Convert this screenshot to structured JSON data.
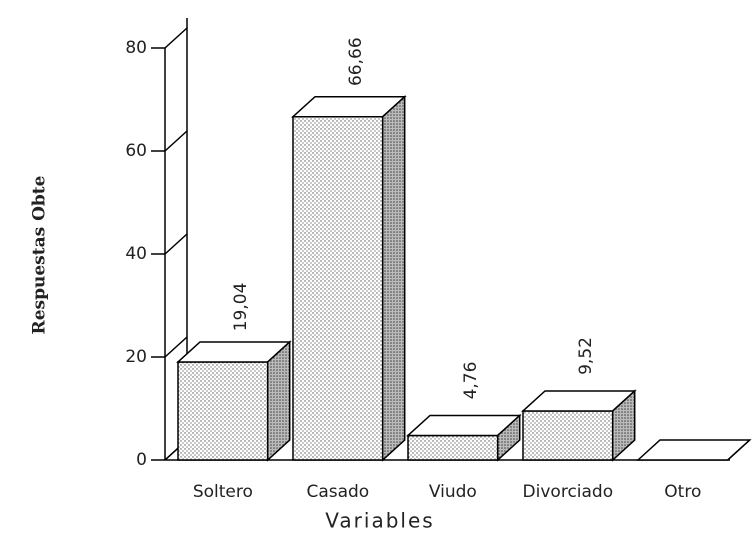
{
  "chart_data": {
    "type": "bar3d",
    "x_label": "Variables",
    "y_label": "Respuestas Obte",
    "categories": [
      "Soltero",
      "Casado",
      "Viudo",
      "Divorciado",
      "Otro"
    ],
    "values": [
      19.04,
      66.66,
      4.76,
      9.52,
      0
    ],
    "value_labels": [
      "19,04",
      "66,66",
      "4,76",
      "9,52",
      null
    ],
    "ylim": [
      0,
      80
    ],
    "yticks": [
      0,
      20,
      40,
      60,
      80
    ],
    "color": "#ffffff"
  }
}
